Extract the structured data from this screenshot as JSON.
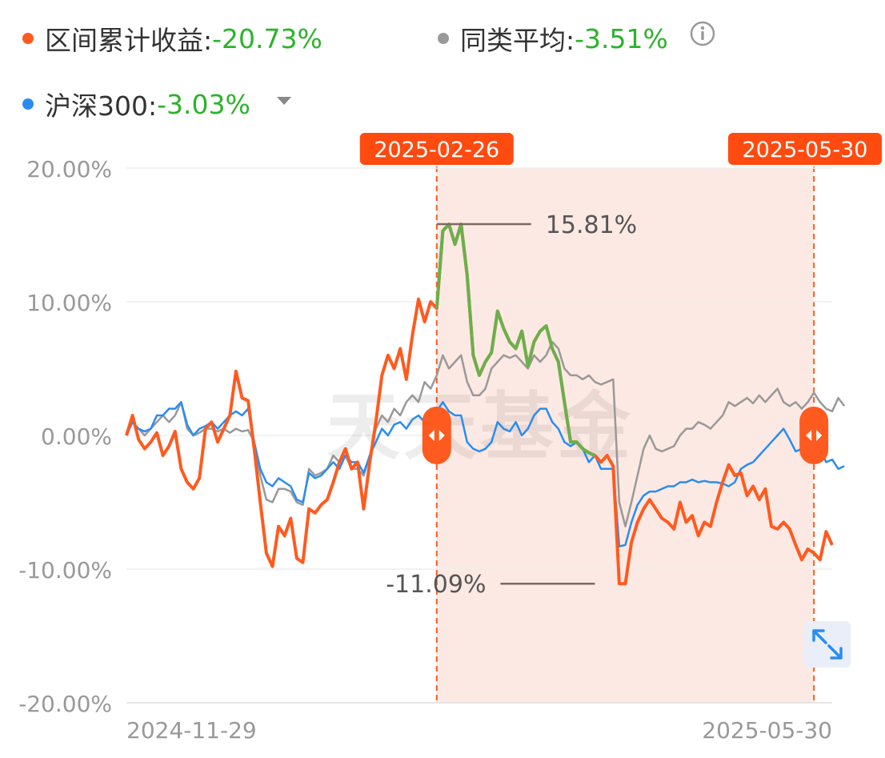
{
  "legend": {
    "fund": {
      "label": "区间累计收益:",
      "value": "-20.73%",
      "color": "#ff5a1f"
    },
    "peer": {
      "label": "同类平均:",
      "value": "-3.51%",
      "color": "#999999"
    },
    "index": {
      "label": "沪深300:",
      "value": "-3.03%",
      "color": "#2a8cf0"
    },
    "value_color": "#2bb32b"
  },
  "watermark": "天天基金",
  "chart_data": {
    "type": "line",
    "x_start_label": "2024-11-29",
    "x_end_label": "2025-05-30",
    "ylim": [
      -20,
      20
    ],
    "y_ticks": [
      {
        "value": 20,
        "label": "20.00%"
      },
      {
        "value": 10,
        "label": "10.00%"
      },
      {
        "value": 0,
        "label": "0.00%"
      },
      {
        "value": -10,
        "label": "-10.00%"
      },
      {
        "value": -20,
        "label": "-20.00%"
      }
    ],
    "range": {
      "start_label": "2025-02-26",
      "end_label": "2025-05-30",
      "start_index": 51,
      "end_index": 113
    },
    "annotations": [
      {
        "text": "15.81%",
        "value": 15.81,
        "index": 51
      },
      {
        "text": "-11.09%",
        "value": -11.09,
        "index": 77
      }
    ],
    "series": [
      {
        "name": "区间累计收益",
        "color": "#ff5a1f",
        "highlight_color": "#6ab04c",
        "values": [
          0,
          1.5,
          -0.3,
          -1,
          -0.5,
          0.2,
          -1.5,
          -0.8,
          0.3,
          -2.5,
          -3.5,
          -4,
          -3.2,
          0.5,
          1,
          -0.5,
          0.5,
          1.5,
          4.8,
          2.8,
          2.6,
          -1,
          -5,
          -8.8,
          -9.8,
          -6.8,
          -7.5,
          -6.2,
          -9.2,
          -9.5,
          -5.5,
          -5.8,
          -5.2,
          -4.8,
          -3.5,
          -2,
          -1,
          -2.5,
          -2,
          -5.5,
          -2,
          1,
          4.5,
          6,
          5,
          6.5,
          4.2,
          7.5,
          10.2,
          8.5,
          10,
          9.5,
          15.3,
          15.8,
          14.3,
          15.81,
          12,
          6,
          4.5,
          5.5,
          6.2,
          9.3,
          8,
          7,
          6.5,
          7.8,
          5.2,
          7,
          7.8,
          8.2,
          6.5,
          5.5,
          2.5,
          -0.5,
          -0.5,
          -1,
          -1.3,
          -1.5,
          -2,
          -1.5,
          -2.3,
          -11.09,
          -11.09,
          -8,
          -6.5,
          -5.5,
          -4.8,
          -5.5,
          -6.2,
          -6.5,
          -7,
          -5,
          -6.5,
          -6,
          -7.5,
          -6.5,
          -6.8,
          -5,
          -3.5,
          -2.2,
          -3,
          -2.8,
          -4.5,
          -3.8,
          -4.8,
          -4,
          -6.8,
          -7,
          -6.5,
          -7,
          -8.2,
          -9.3,
          -8.5,
          -8.8,
          -9.3,
          -7.2,
          -8.2
        ]
      },
      {
        "name": "同类平均",
        "color": "#999999",
        "values": [
          0,
          1,
          0.5,
          0,
          0.5,
          1,
          1.5,
          1,
          1.5,
          2.5,
          0.5,
          0,
          0.2,
          0.5,
          0.5,
          0.3,
          0.5,
          0.2,
          0.5,
          0.3,
          0.4,
          -0.5,
          -3,
          -4.8,
          -5,
          -4,
          -4,
          -4.2,
          -5,
          -5.2,
          -2.5,
          -3,
          -2.8,
          -2.5,
          -1.5,
          -2,
          -1.5,
          -2.5,
          -2.5,
          -3,
          -1.5,
          0.5,
          1.5,
          1,
          2,
          1.5,
          2.5,
          3,
          2.5,
          4,
          3.5,
          4.5,
          6,
          5,
          5.5,
          6,
          4,
          3,
          3,
          3.5,
          5,
          5.5,
          6,
          5.8,
          6,
          5.5,
          5,
          6,
          5.5,
          6,
          7,
          6.5,
          5,
          4.5,
          4.5,
          4.2,
          4.5,
          4,
          3.8,
          4,
          4.2,
          -5,
          -6.8,
          -5,
          -3,
          -1,
          0,
          -1,
          -1.2,
          -1,
          -0.8,
          0,
          0.5,
          0.5,
          1,
          0.8,
          0.5,
          1,
          1.5,
          2.5,
          2.2,
          2.5,
          2.8,
          2.4,
          3,
          2.5,
          3,
          3.5,
          2.5,
          2.2,
          2.5,
          2,
          2.5,
          3.2,
          2.5,
          2,
          1.8,
          2.8,
          2.2
        ]
      },
      {
        "name": "沪深300",
        "color": "#2a8cf0",
        "values": [
          0,
          1,
          0.5,
          0.3,
          0.5,
          1.5,
          1.5,
          2,
          2,
          2.5,
          0.8,
          0,
          0.5,
          0.7,
          1,
          0.5,
          1,
          1.5,
          1.8,
          1.5,
          2,
          -0.5,
          -2.5,
          -3.5,
          -3.8,
          -3.2,
          -3.5,
          -3.8,
          -4.8,
          -5,
          -2.8,
          -3.2,
          -3,
          -2.5,
          -2,
          -2.5,
          -1.5,
          -2,
          -2,
          -2.8,
          -1.5,
          -0.5,
          0.5,
          0,
          0.8,
          1,
          0.5,
          1.2,
          1.5,
          1,
          2,
          1.8,
          2.5,
          1.8,
          1.5,
          1.5,
          -0.5,
          -1,
          -1.2,
          -1,
          -0.5,
          1,
          0.5,
          0.3,
          1,
          0,
          0.5,
          1.5,
          2,
          2,
          1,
          0.5,
          -0.5,
          -0.8,
          -0.5,
          -1,
          -2,
          -1.5,
          -2.5,
          -2.5,
          -2.5,
          -8.3,
          -8.2,
          -6.5,
          -5.2,
          -4.5,
          -4.2,
          -4.2,
          -4,
          -3.8,
          -3.8,
          -3.5,
          -3.5,
          -3.3,
          -3.5,
          -3.4,
          -3.5,
          -3.5,
          -3.6,
          -3.8,
          -3.5,
          -2.5,
          -2.2,
          -2,
          -1.5,
          -1,
          -0.5,
          0,
          0.5,
          -0.3,
          -1.2,
          -1,
          -0.5,
          -0.2,
          -1,
          -2,
          -1.8,
          -2.5,
          -2.3
        ]
      }
    ]
  }
}
